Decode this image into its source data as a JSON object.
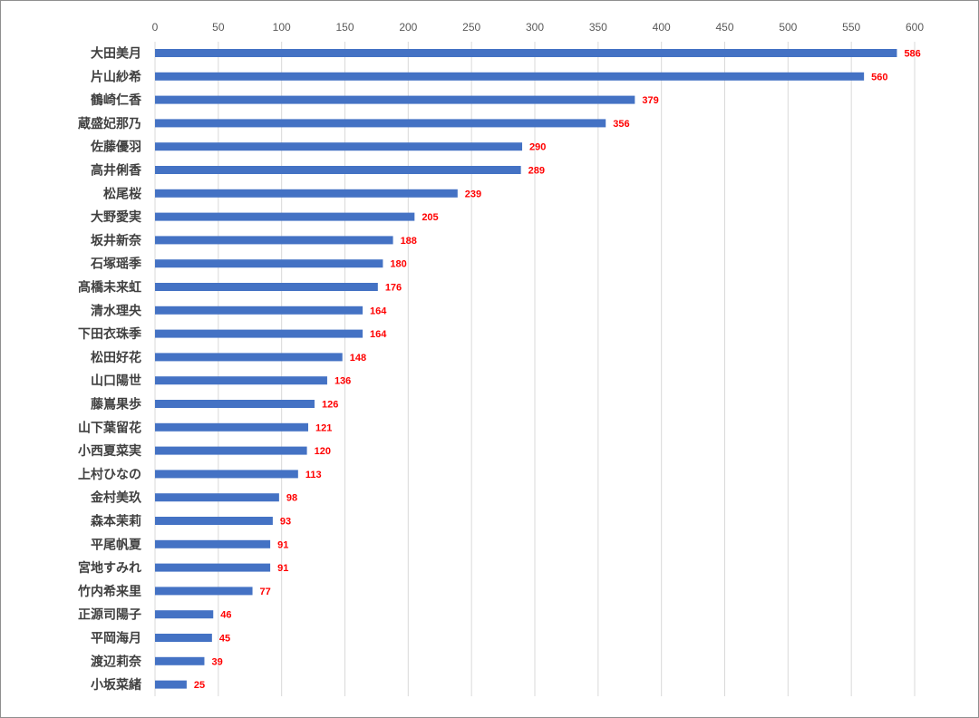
{
  "chart_data": {
    "type": "bar",
    "orientation": "horizontal",
    "title": "",
    "xlabel": "",
    "ylabel": "",
    "xlim": [
      0,
      600
    ],
    "x_ticks": [
      0,
      50,
      100,
      150,
      200,
      250,
      300,
      350,
      400,
      450,
      500,
      550,
      600
    ],
    "x_axis_position": "top",
    "grid": "vertical",
    "legend": "none",
    "bar_color": "#4472C4",
    "label_color": "#FF0000",
    "categories": [
      "大田美月",
      "片山紗希",
      "鶴崎仁香",
      "蔵盛妃那乃",
      "佐藤優羽",
      "高井俐香",
      "松尾桜",
      "大野愛実",
      "坂井新奈",
      "石塚瑶季",
      "髙橋未来虹",
      "清水理央",
      "下田衣珠季",
      "松田好花",
      "山口陽世",
      "藤嶌果歩",
      "山下葉留花",
      "小西夏菜実",
      "上村ひなの",
      "金村美玖",
      "森本茉莉",
      "平尾帆夏",
      "宮地すみれ",
      "竹内希来里",
      "正源司陽子",
      "平岡海月",
      "渡辺莉奈",
      "小坂菜緒"
    ],
    "values": [
      586,
      560,
      379,
      356,
      290,
      289,
      239,
      205,
      188,
      180,
      176,
      164,
      164,
      148,
      136,
      126,
      121,
      120,
      113,
      98,
      93,
      91,
      91,
      77,
      46,
      45,
      39,
      25
    ]
  }
}
